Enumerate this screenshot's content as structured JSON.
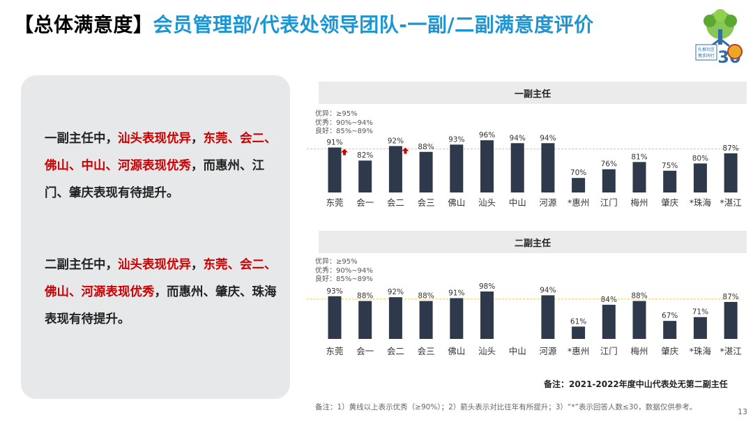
{
  "title": {
    "bracket": "【总体满意度】",
    "main": "会员管理部/代表处领导团队-一副/二副满意度评价"
  },
  "logo": {
    "text_line1": "扎根社区",
    "text_line2": "携手同行",
    "number": "30"
  },
  "summary": {
    "p1": {
      "s1": "一副主任中，",
      "s2": "汕头表现优异",
      "s3": "，",
      "s4": "东莞、会二、佛山、中山、河源表现优秀",
      "s5": "，而惠州、江门、肇庆表现有待提升。"
    },
    "p2": {
      "s1": "二副主任中，",
      "s2": "汕头表现优异",
      "s3": "，",
      "s4": "东莞、会二、佛山、河源表现优秀",
      "s5": "，而惠州、肇庆、珠海表现有待提升。"
    }
  },
  "legend": {
    "line1": "优异：≥95%",
    "line2": "优秀：90%~94%",
    "line3": "良好：85%~89%"
  },
  "chart_data": [
    {
      "type": "bar",
      "title": "一副主任",
      "categories": [
        "东莞",
        "会一",
        "会二",
        "会三",
        "佛山",
        "汕头",
        "中山",
        "河源",
        "*惠州",
        "江门",
        "梅州",
        "肇庆",
        "*珠海",
        "*湛江"
      ],
      "values": [
        91,
        82,
        92,
        88,
        93,
        96,
        94,
        94,
        70,
        76,
        81,
        75,
        80,
        87
      ],
      "labels": [
        "91%",
        "82%",
        "92%",
        "88%",
        "93%",
        "96%",
        "94%",
        "94%",
        "70%",
        "76%",
        "81%",
        "75%",
        "80%",
        "87%"
      ],
      "improved": [
        true,
        false,
        true,
        false,
        false,
        false,
        false,
        false,
        false,
        false,
        false,
        false,
        false,
        false
      ],
      "threshold": 90,
      "bar_color": "#2e3a4b",
      "threshold_color": "#f5c542",
      "arrow_color": "#cc0000"
    },
    {
      "type": "bar",
      "title": "二副主任",
      "categories": [
        "东莞",
        "会一",
        "会二",
        "会三",
        "佛山",
        "汕头",
        "中山",
        "河源",
        "*惠州",
        "江门",
        "梅州",
        "肇庆",
        "*珠海",
        "*湛江"
      ],
      "values": [
        93,
        88,
        92,
        88,
        91,
        98,
        null,
        94,
        61,
        84,
        88,
        67,
        71,
        87
      ],
      "labels": [
        "93%",
        "88%",
        "92%",
        "88%",
        "91%",
        "98%",
        "",
        "94%",
        "61%",
        "84%",
        "88%",
        "67%",
        "71%",
        "87%"
      ],
      "improved": [
        false,
        false,
        false,
        false,
        false,
        false,
        false,
        false,
        false,
        false,
        false,
        false,
        false,
        false
      ],
      "threshold": 90,
      "bar_color": "#2e3a4b",
      "threshold_color": "#f5c542",
      "arrow_color": "#cc0000"
    }
  ],
  "notes": {
    "main": "备注：2021-2022年度中山代表处无第二副主任",
    "footnote": "备注：1）黄线以上表示优秀（≥90%）；2）箭头表示对比往年有所提升；3）“*”表示回答人数≤30，数据仅供参考。",
    "page": "13"
  }
}
